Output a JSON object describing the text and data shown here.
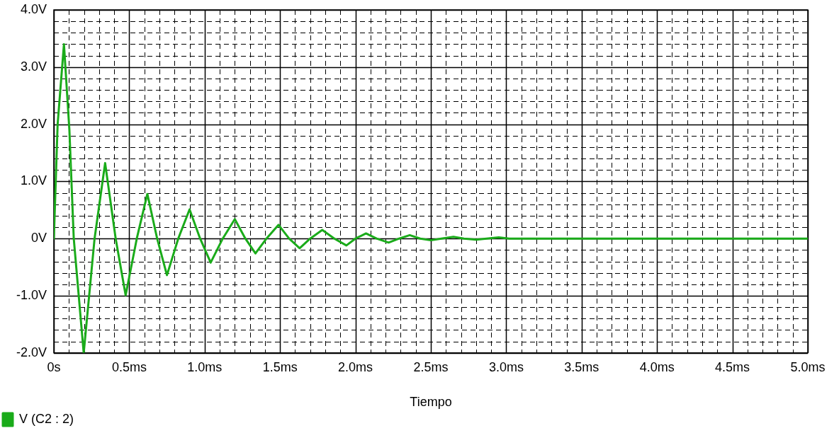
{
  "chart_data": {
    "type": "line",
    "xlabel": "Tiempo",
    "xlim": [
      0,
      5
    ],
    "ylim": [
      -2,
      4
    ],
    "xticks": [
      {
        "value": 0,
        "label": "0s"
      },
      {
        "value": 0.1,
        "label": null
      },
      {
        "value": 0.2,
        "label": null
      },
      {
        "value": 0.3,
        "label": null
      },
      {
        "value": 0.4,
        "label": null
      },
      {
        "value": 0.5,
        "label": "0.5ms"
      },
      {
        "value": 0.6,
        "label": null
      },
      {
        "value": 0.7,
        "label": null
      },
      {
        "value": 0.8,
        "label": null
      },
      {
        "value": 0.9,
        "label": null
      },
      {
        "value": 1,
        "label": "1.0ms"
      },
      {
        "value": 1.1,
        "label": null
      },
      {
        "value": 1.2,
        "label": null
      },
      {
        "value": 1.3,
        "label": null
      },
      {
        "value": 1.4,
        "label": null
      },
      {
        "value": 1.5,
        "label": "1.5ms"
      },
      {
        "value": 1.6,
        "label": null
      },
      {
        "value": 1.7,
        "label": null
      },
      {
        "value": 1.8,
        "label": null
      },
      {
        "value": 1.9,
        "label": null
      },
      {
        "value": 2,
        "label": "2.0ms"
      },
      {
        "value": 2.1,
        "label": null
      },
      {
        "value": 2.2,
        "label": null
      },
      {
        "value": 2.3,
        "label": null
      },
      {
        "value": 2.4,
        "label": null
      },
      {
        "value": 2.5,
        "label": "2.5ms"
      },
      {
        "value": 2.6,
        "label": null
      },
      {
        "value": 2.7,
        "label": null
      },
      {
        "value": 2.8,
        "label": null
      },
      {
        "value": 2.9,
        "label": null
      },
      {
        "value": 3,
        "label": "3.0ms"
      },
      {
        "value": 3.1,
        "label": null
      },
      {
        "value": 3.2,
        "label": null
      },
      {
        "value": 3.3,
        "label": null
      },
      {
        "value": 3.4,
        "label": null
      },
      {
        "value": 3.5,
        "label": "3.5ms"
      },
      {
        "value": 3.6,
        "label": null
      },
      {
        "value": 3.7,
        "label": null
      },
      {
        "value": 3.8,
        "label": null
      },
      {
        "value": 3.9,
        "label": null
      },
      {
        "value": 4,
        "label": "4.0ms"
      },
      {
        "value": 4.1,
        "label": null
      },
      {
        "value": 4.2,
        "label": null
      },
      {
        "value": 4.3,
        "label": null
      },
      {
        "value": 4.4,
        "label": null
      },
      {
        "value": 4.5,
        "label": "4.5ms"
      },
      {
        "value": 4.6,
        "label": null
      },
      {
        "value": 4.7,
        "label": null
      },
      {
        "value": 4.8,
        "label": null
      },
      {
        "value": 4.9,
        "label": null
      },
      {
        "value": 5,
        "label": "5.0ms"
      }
    ],
    "yticks": [
      {
        "value": -2,
        "label": "-2.0V"
      },
      {
        "value": -1.8,
        "label": null
      },
      {
        "value": -1.6,
        "label": null
      },
      {
        "value": -1.4,
        "label": null
      },
      {
        "value": -1.2,
        "label": null
      },
      {
        "value": -1,
        "label": "-1.0V"
      },
      {
        "value": -0.8,
        "label": null
      },
      {
        "value": -0.6,
        "label": null
      },
      {
        "value": -0.4,
        "label": null
      },
      {
        "value": -0.2,
        "label": null
      },
      {
        "value": 0,
        "label": "0V"
      },
      {
        "value": 0.2,
        "label": null
      },
      {
        "value": 0.4,
        "label": null
      },
      {
        "value": 0.6,
        "label": null
      },
      {
        "value": 0.8,
        "label": null
      },
      {
        "value": 1,
        "label": "1.0V"
      },
      {
        "value": 1.2,
        "label": null
      },
      {
        "value": 1.4,
        "label": null
      },
      {
        "value": 1.6,
        "label": null
      },
      {
        "value": 1.8,
        "label": null
      },
      {
        "value": 2,
        "label": "2.0V"
      },
      {
        "value": 2.2,
        "label": null
      },
      {
        "value": 2.4,
        "label": null
      },
      {
        "value": 2.6,
        "label": null
      },
      {
        "value": 2.8,
        "label": null
      },
      {
        "value": 3,
        "label": "3.0V"
      },
      {
        "value": 3.2,
        "label": null
      },
      {
        "value": 3.4,
        "label": null
      },
      {
        "value": 3.6,
        "label": null
      },
      {
        "value": 3.8,
        "label": null
      },
      {
        "value": 4,
        "label": "4.0V"
      }
    ],
    "grid": true,
    "legend": "bottom left",
    "marker": "none",
    "line_style": "solid",
    "series": [
      {
        "name": "V (C2 : 2)",
        "color": "#1aab1a",
        "x": [
          0,
          0.025,
          0.067,
          0.103,
          0.132,
          0.198,
          0.27,
          0.34,
          0.41,
          0.476,
          0.55,
          0.62,
          0.685,
          0.75,
          0.825,
          0.9,
          0.97,
          1.04,
          1.12,
          1.2,
          1.27,
          1.337,
          1.41,
          1.49,
          1.56,
          1.63,
          1.7,
          1.78,
          1.86,
          1.94,
          2,
          2.07,
          2.14,
          2.22,
          2.29,
          2.36,
          2.43,
          2.5,
          2.57,
          2.65,
          2.72,
          2.8,
          2.87,
          2.95,
          3.02,
          5
        ],
        "values": [
          0,
          2,
          3.4,
          1.9,
          0,
          -2,
          0,
          1.32,
          0,
          -0.99,
          0,
          0.78,
          0,
          -0.64,
          0,
          0.51,
          0,
          -0.42,
          0,
          0.34,
          0,
          -0.26,
          0,
          0.24,
          0,
          -0.17,
          0,
          0.15,
          0,
          -0.12,
          0,
          0.09,
          0,
          -0.07,
          0,
          0.06,
          0,
          -0.03,
          0,
          0.03,
          0,
          -0.02,
          0,
          0.02,
          0,
          0
        ]
      }
    ]
  }
}
